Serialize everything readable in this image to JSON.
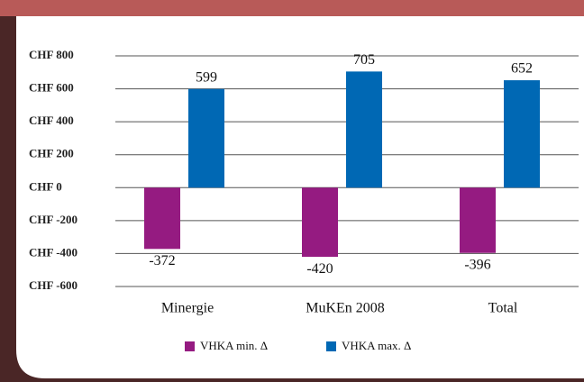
{
  "chart_data": {
    "type": "bar",
    "categories": [
      "Minergie",
      "MuKEn 2008",
      "Total"
    ],
    "series": [
      {
        "name": "VHKA min. Δ",
        "color": "#951b81",
        "values": [
          -372,
          -420,
          -396
        ]
      },
      {
        "name": "VHKA max. Δ",
        "color": "#0068b4",
        "values": [
          599,
          705,
          652
        ]
      }
    ],
    "ylim": [
      -600,
      800
    ],
    "yticks": [
      {
        "value": -600,
        "label": "CHF -600"
      },
      {
        "value": -400,
        "label": "CHF -400"
      },
      {
        "value": -200,
        "label": "CHF -200"
      },
      {
        "value": 0,
        "label": "CHF 0"
      },
      {
        "value": 200,
        "label": "CHF 200"
      },
      {
        "value": 400,
        "label": "CHF 400"
      },
      {
        "value": 600,
        "label": "CHF 600"
      },
      {
        "value": 800,
        "label": "CHF 800"
      }
    ],
    "grid": true,
    "legend": "bottom"
  }
}
